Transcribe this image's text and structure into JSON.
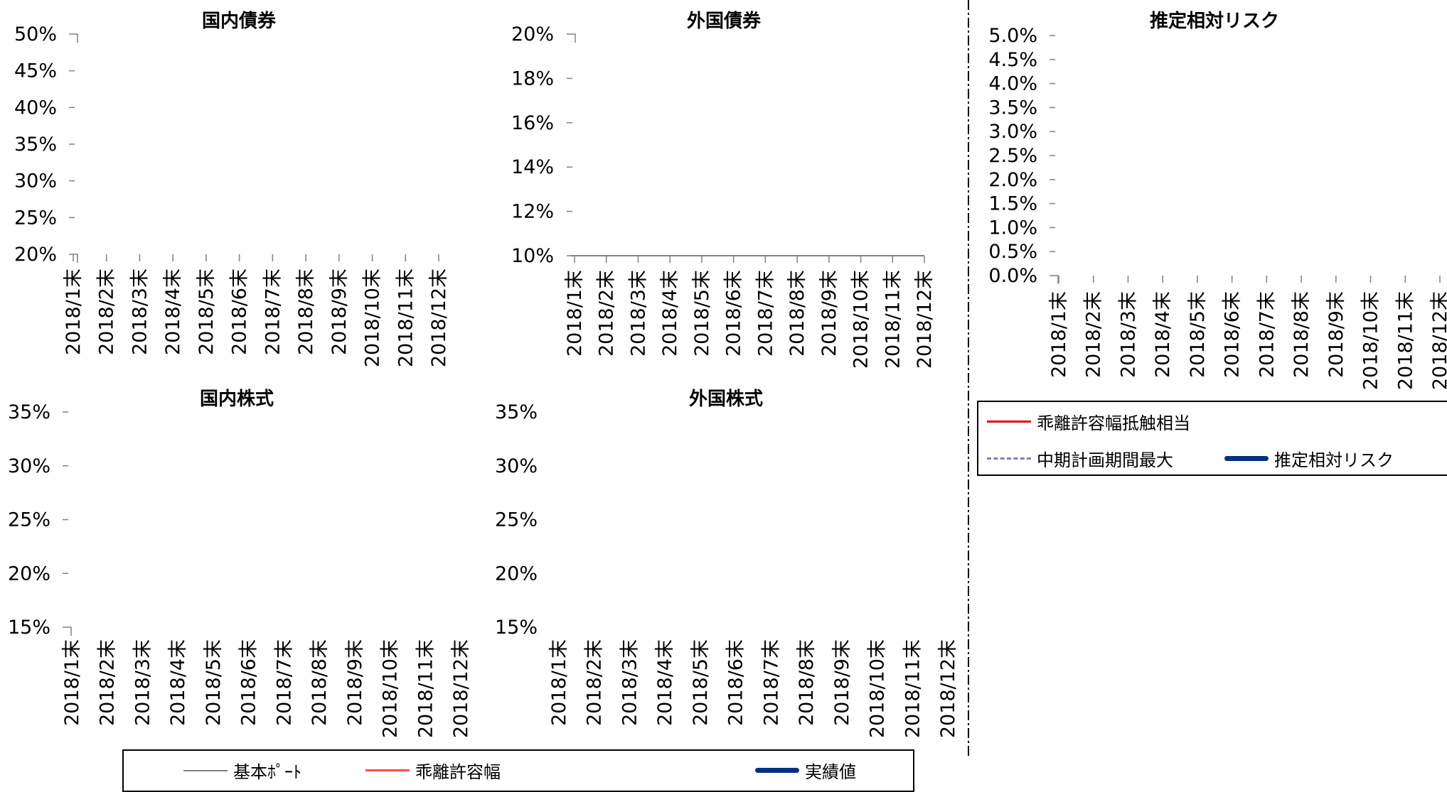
{
  "chart_data": [
    {
      "type": "line",
      "title": "国内債券",
      "categories": [
        "2018/1末",
        "2018/2末",
        "2018/3末",
        "2018/4末",
        "2018/5末",
        "2018/6末",
        "2018/7末",
        "2018/8末",
        "2018/9末",
        "2018/10末",
        "2018/11末",
        "2018/12末"
      ],
      "ylim": [
        0.2,
        0.5
      ],
      "yticks": [
        "50%",
        "45%",
        "40%",
        "35%",
        "30%",
        "25%",
        "20%"
      ],
      "series": [],
      "grid": false
    },
    {
      "type": "line",
      "title": "外国債券",
      "categories": [
        "2018/1末",
        "2018/2末",
        "2018/3末",
        "2018/4末",
        "2018/5末",
        "2018/6末",
        "2018/7末",
        "2018/8末",
        "2018/9末",
        "2018/10末",
        "2018/11末",
        "2018/12末"
      ],
      "ylim": [
        0.1,
        0.2
      ],
      "yticks": [
        "20%",
        "18%",
        "16%",
        "14%",
        "12%",
        "10%"
      ],
      "series": [],
      "grid": false
    },
    {
      "type": "line",
      "title": "推定相対リスク",
      "categories": [
        "2018/1末",
        "2018/2末",
        "2018/3末",
        "2018/4末",
        "2018/5末",
        "2018/6末",
        "2018/7末",
        "2018/8末",
        "2018/9末",
        "2018/10末",
        "2018/11末",
        "2018/12末"
      ],
      "ylim": [
        0.0,
        0.05
      ],
      "yticks": [
        "5.0%",
        "4.5%",
        "4.0%",
        "3.5%",
        "3.0%",
        "2.5%",
        "2.0%",
        "1.5%",
        "1.0%",
        "0.5%",
        "0.0%"
      ],
      "series": [],
      "grid": false
    },
    {
      "type": "line",
      "title": "国内株式",
      "categories": [
        "2018/1末",
        "2018/2末",
        "2018/3末",
        "2018/4末",
        "2018/5末",
        "2018/6末",
        "2018/7末",
        "2018/8末",
        "2018/9末",
        "2018/10末",
        "2018/11末",
        "2018/12末"
      ],
      "ylim": [
        0.15,
        0.35
      ],
      "yticks": [
        "35%",
        "30%",
        "25%",
        "20%",
        "15%"
      ],
      "series": [],
      "grid": false
    },
    {
      "type": "line",
      "title": "外国株式",
      "categories": [
        "2018/1末",
        "2018/2末",
        "2018/3末",
        "2018/4末",
        "2018/5末",
        "2018/6末",
        "2018/7末",
        "2018/8末",
        "2018/9末",
        "2018/10末",
        "2018/11末",
        "2018/12末"
      ],
      "ylim": [
        0.15,
        0.35
      ],
      "yticks": [
        "35%",
        "30%",
        "25%",
        "20%",
        "15%"
      ],
      "series": [],
      "grid": false
    }
  ],
  "legend_bottom": {
    "items": [
      {
        "label": "基本ﾎﾟｰﾄ",
        "color": "#808080",
        "style": "solid-thin"
      },
      {
        "label": "乖離許容幅",
        "color": "#ff4d4d",
        "style": "solid"
      },
      {
        "label": "実績値",
        "color": "#003082",
        "style": "solid-thick"
      }
    ]
  },
  "legend_right": {
    "items": [
      {
        "label": "乖離許容幅抵触相当",
        "color": "#e8000b",
        "style": "solid"
      },
      {
        "label": "中期計画期間最大",
        "color": "#7f7fbf",
        "style": "dashed"
      },
      {
        "label": "推定相対リスク",
        "color": "#003082",
        "style": "solid-thick"
      }
    ]
  },
  "colors": {
    "axis": "#808080",
    "divider": "#000000"
  }
}
